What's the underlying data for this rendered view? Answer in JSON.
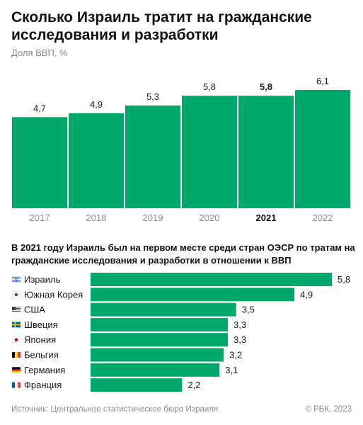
{
  "title": "Сколько Израиль тратит на гражданские исследования и разработки",
  "subtitle": "Доля ВВП, %",
  "accent_color": "#00a86b",
  "chart_data": [
    {
      "type": "bar",
      "categories": [
        "2017",
        "2018",
        "2019",
        "2020",
        "2021",
        "2022"
      ],
      "values": [
        4.7,
        4.9,
        5.3,
        5.8,
        5.8,
        6.1
      ],
      "value_labels": [
        "4,7",
        "4,9",
        "5,3",
        "5,8",
        "5,8",
        "6,1"
      ],
      "highlight_category": "2021",
      "ylim": [
        0,
        6.1
      ],
      "grid": false
    },
    {
      "type": "bar",
      "orientation": "horizontal",
      "title": "В 2021 году Израиль был на первом месте среди стран ОЭСР по тратам на гражданские исследования и разработки в отношении к ВВП",
      "categories": [
        "Израиль",
        "Южная Корея",
        "США",
        "Швеция",
        "Япония",
        "Бельгия",
        "Германия",
        "Франция"
      ],
      "flag_icons": [
        "israel-flag-icon",
        "south-korea-flag-icon",
        "usa-flag-icon",
        "sweden-flag-icon",
        "japan-flag-icon",
        "belgium-flag-icon",
        "germany-flag-icon",
        "france-flag-icon"
      ],
      "values": [
        5.8,
        4.9,
        3.5,
        3.3,
        3.3,
        3.2,
        3.1,
        2.2
      ],
      "value_labels": [
        "5,8",
        "4,9",
        "3,5",
        "3,3",
        "3,3",
        "3,2",
        "3,1",
        "2,2"
      ],
      "xlim": [
        0,
        5.8
      ],
      "grid": false
    }
  ],
  "footer": {
    "source": "Источник: Центральное статистическое бюро Израиля",
    "copyright": "© РБК, 2023"
  }
}
